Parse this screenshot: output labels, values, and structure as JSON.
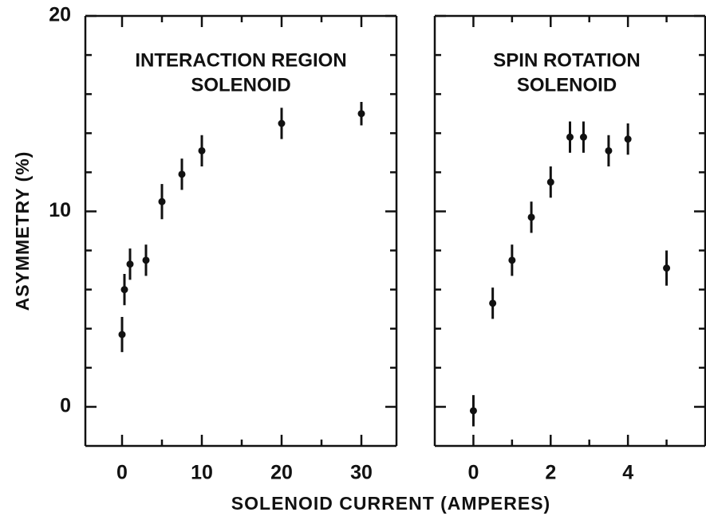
{
  "chart_data": [
    {
      "type": "scatter",
      "title": [
        "INTERACTION REGION",
        "SOLENOID"
      ],
      "ylabel": "ASYMMETRY  (%)",
      "xlabel": "SOLENOID  CURRENT   (AMPERES)",
      "xlim": [
        -4.6,
        34.4
      ],
      "xticks": [
        0,
        10,
        20,
        30
      ],
      "xminor": [
        5,
        15,
        25
      ],
      "ylim": [
        -2,
        20
      ],
      "yticks": [
        0,
        10,
        20
      ],
      "yminor": [
        2,
        4,
        6,
        8,
        12,
        14,
        16,
        18
      ],
      "color": "#111",
      "x": [
        0,
        0.3,
        1,
        3,
        5,
        7.5,
        10,
        20,
        30
      ],
      "values": [
        3.7,
        6.0,
        7.3,
        7.5,
        10.5,
        11.9,
        13.1,
        14.5,
        15.0
      ],
      "errors": [
        0.9,
        0.8,
        0.8,
        0.8,
        0.9,
        0.8,
        0.8,
        0.8,
        0.6
      ]
    },
    {
      "type": "scatter",
      "title": [
        "SPIN ROTATION",
        "SOLENOID"
      ],
      "xlim": [
        -1,
        6
      ],
      "xticks": [
        0,
        2,
        4
      ],
      "xminor": [
        1,
        3,
        5
      ],
      "ylim": [
        -2,
        20
      ],
      "yticks": [
        0,
        10,
        20
      ],
      "yminor": [
        2,
        4,
        6,
        8,
        12,
        14,
        16,
        18
      ],
      "color": "#111",
      "x": [
        0,
        0.5,
        1,
        1.5,
        2,
        2.5,
        2.85,
        3.5,
        4,
        5
      ],
      "values": [
        -0.2,
        5.3,
        7.5,
        9.7,
        11.5,
        13.8,
        13.8,
        13.1,
        13.7,
        7.1
      ],
      "errors": [
        0.8,
        0.8,
        0.8,
        0.8,
        0.8,
        0.8,
        0.8,
        0.8,
        0.8,
        0.9
      ]
    }
  ]
}
